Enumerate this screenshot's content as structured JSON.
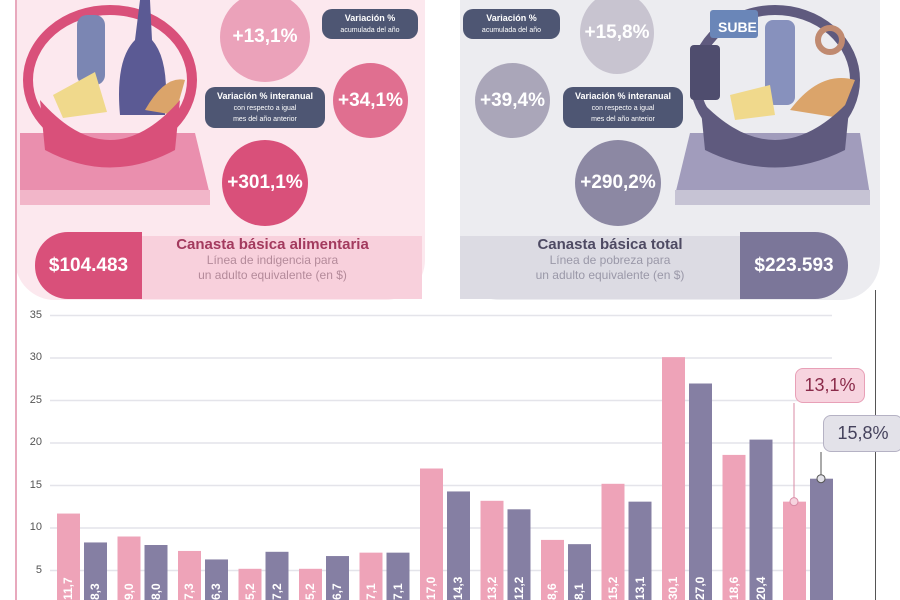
{
  "food_basket": {
    "monthly_change": "+13,1%",
    "ytd_label_title": "Variación %",
    "ytd_label_sub": "acumulada del año",
    "ytd_change": "+34,1%",
    "yoy_label_title": "Variación % interanual",
    "yoy_label_sub1": "con respecto a igual",
    "yoy_label_sub2": "mes del año anterior",
    "yoy_change": "+301,1%",
    "price": "$104.483",
    "title": "Canasta básica alimentaria",
    "subtitle1": "Línea de indigencia para",
    "subtitle2": "un adulto equivalente (en $)",
    "color": "#d9507a"
  },
  "total_basket": {
    "monthly_change": "+15,8%",
    "ytd_label_title": "Variación %",
    "ytd_label_sub": "acumulada del año",
    "ytd_change": "+39,4%",
    "yoy_label_title": "Variación % interanual",
    "yoy_label_sub1": "con respecto a igual",
    "yoy_label_sub2": "mes del año anterior",
    "yoy_change": "+290,2%",
    "price": "$223.593",
    "title": "Canasta básica total",
    "subtitle1": "Línea de pobreza para",
    "subtitle2": "un adulto equivalente (en $)",
    "color": "#7b7699",
    "card_text": "SUBE"
  },
  "chart_data": {
    "type": "bar",
    "ylim": [
      0,
      35
    ],
    "yticks": [
      "5",
      "10",
      "15",
      "20",
      "25",
      "30",
      "35"
    ],
    "grid": true,
    "series": [
      {
        "values": [
          11.7,
          9.0,
          7.3,
          5.2,
          5.2,
          7.1,
          17.0,
          13.2,
          8.6,
          15.2,
          30.1,
          18.6,
          13.1
        ],
        "color": "#eea3b8",
        "labels": [
          "11,7",
          "9,0",
          "7,3",
          "5,2",
          "5,2",
          "7,1",
          "17,0",
          "13,2",
          "8,6",
          "15,2",
          "30,1",
          "18,6",
          ""
        ]
      },
      {
        "values": [
          8.3,
          8.0,
          6.3,
          7.2,
          6.7,
          7.1,
          14.3,
          12.2,
          8.1,
          13.1,
          27.0,
          20.4,
          15.8
        ],
        "color": "#857fa3",
        "labels": [
          "8,3",
          "8,0",
          "6,3",
          "7,2",
          "6,7",
          "7,1",
          "14,3",
          "12,2",
          "8,1",
          "13,1",
          "27,0",
          "20,4",
          ""
        ]
      }
    ],
    "callouts": [
      "13,1%",
      "15,8%"
    ]
  }
}
